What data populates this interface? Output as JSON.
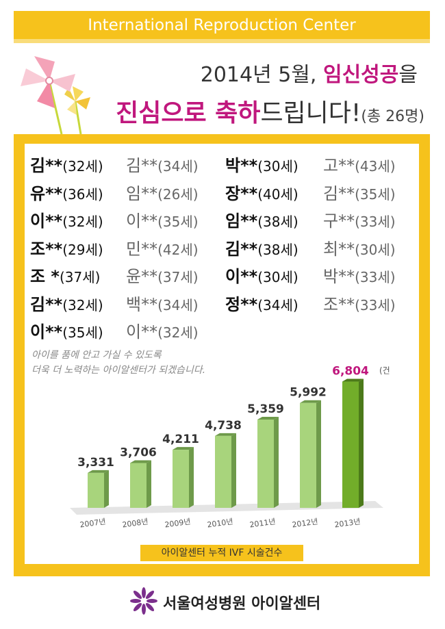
{
  "header": {
    "title": "International Reproduction Center"
  },
  "headline": {
    "line1_prefix": "2014년 5월, ",
    "line1_highlight": "임신성공",
    "line1_suffix": "을",
    "line2_highlight1": "진심으로 축하",
    "line2_text": "드립니다!",
    "line2_count": "(총 26명)"
  },
  "names": {
    "rows": [
      [
        {
          "name": "김**",
          "age": "(32세)",
          "style": "dark"
        },
        {
          "name": "김**",
          "age": "(34세)",
          "style": "gray"
        },
        {
          "name": "박**",
          "age": "(30세)",
          "style": "dark"
        },
        {
          "name": "고**",
          "age": "(43세)",
          "style": "gray"
        }
      ],
      [
        {
          "name": "유**",
          "age": "(36세)",
          "style": "dark"
        },
        {
          "name": "임**",
          "age": "(26세)",
          "style": "gray"
        },
        {
          "name": "장**",
          "age": "(40세)",
          "style": "dark"
        },
        {
          "name": "김**",
          "age": "(35세)",
          "style": "gray"
        }
      ],
      [
        {
          "name": "이**",
          "age": "(32세)",
          "style": "dark"
        },
        {
          "name": "이**",
          "age": "(35세)",
          "style": "gray"
        },
        {
          "name": "임**",
          "age": "(38세)",
          "style": "dark"
        },
        {
          "name": "구**",
          "age": "(33세)",
          "style": "gray"
        }
      ],
      [
        {
          "name": "조**",
          "age": "(29세)",
          "style": "dark"
        },
        {
          "name": "민**",
          "age": "(42세)",
          "style": "gray"
        },
        {
          "name": "김**",
          "age": "(38세)",
          "style": "dark"
        },
        {
          "name": "최**",
          "age": "(30세)",
          "style": "gray"
        }
      ],
      [
        {
          "name": "조 *",
          "age": "(37세)",
          "style": "dark"
        },
        {
          "name": "윤**",
          "age": "(37세)",
          "style": "gray"
        },
        {
          "name": "이**",
          "age": "(30세)",
          "style": "dark"
        },
        {
          "name": "박**",
          "age": "(33세)",
          "style": "gray"
        }
      ],
      [
        {
          "name": "김**",
          "age": "(32세)",
          "style": "dark"
        },
        {
          "name": "백**",
          "age": "(34세)",
          "style": "gray"
        },
        {
          "name": "정**",
          "age": "(34세)",
          "style": "dark"
        },
        {
          "name": "조**",
          "age": "(33세)",
          "style": "gray"
        }
      ],
      [
        {
          "name": "이**",
          "age": "(35세)",
          "style": "dark"
        },
        {
          "name": "이**",
          "age": "(32세)",
          "style": "gray"
        }
      ]
    ]
  },
  "message": {
    "line1": "아이를 품에 안고 가실 수 있도록",
    "line2": "더욱 더 노력하는 아이알센터가 되겠습니다."
  },
  "chart_data": {
    "type": "bar",
    "categories": [
      "2007년",
      "2008년",
      "2009년",
      "2010년",
      "2011년",
      "2012년",
      "2013년"
    ],
    "values": [
      3331,
      3706,
      4211,
      4738,
      5359,
      5992,
      6804
    ],
    "value_labels": [
      "3,331",
      "3,706",
      "4,211",
      "4,738",
      "5,359",
      "5,992",
      "6,804"
    ],
    "unit_label": "(건)",
    "highlight_index": 6,
    "colors": {
      "bar": "#a8d47c",
      "bar_side": "#6e9a4a",
      "highlight": "#72ad2a",
      "highlight_side": "#4c7a1a",
      "highlight_label": "#c0177d"
    },
    "ylim": [
      2000,
      7000
    ]
  },
  "caption": {
    "label": "아이알센터 누적 IVF 시술건수"
  },
  "footer": {
    "name": "서울여성병원 아이알센터",
    "logo_icon": "purple-flower-icon"
  },
  "colors": {
    "accent_yellow": "#f6c21c",
    "highlight_magenta": "#c0177d"
  }
}
